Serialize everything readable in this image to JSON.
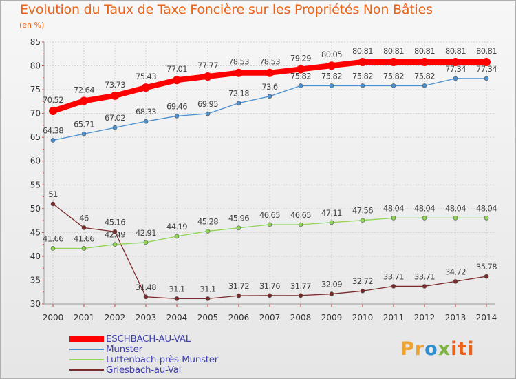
{
  "chart_data": {
    "type": "line",
    "title": "Evolution du Taux de Taxe Foncière sur les Propriétés Non Bâties",
    "subtitle": "(en %)",
    "xlabel": "",
    "ylabel": "(en %)",
    "ylim": [
      30,
      85
    ],
    "yticks": [
      30,
      35,
      40,
      45,
      50,
      55,
      60,
      65,
      70,
      75,
      80,
      85
    ],
    "x": [
      "2000",
      "2001",
      "2002",
      "2003",
      "2004",
      "2005",
      "2006",
      "2007",
      "2008",
      "2009",
      "2010",
      "2011",
      "2012",
      "2013",
      "2014"
    ],
    "grid": true,
    "legend_position": "bottom-left",
    "series": [
      {
        "name": "ESCHBACH-AU-VAL",
        "color": "#ff0000",
        "values": [
          70.52,
          72.64,
          73.73,
          75.43,
          77.01,
          77.77,
          78.53,
          78.53,
          79.29,
          80.05,
          80.81,
          80.81,
          80.81,
          80.81,
          80.81
        ],
        "labels": [
          "70.52",
          "72.64",
          "73.73",
          "75.43",
          "77.01",
          "77.77",
          "78.53",
          "78.53",
          "79.29",
          "80.05",
          "80.81",
          "80.81",
          "80.81",
          "80.81",
          "80.81"
        ]
      },
      {
        "name": "Munster",
        "color": "#4a90d0",
        "values": [
          64.38,
          65.71,
          67.02,
          68.33,
          69.46,
          69.95,
          72.18,
          73.6,
          75.82,
          75.82,
          75.82,
          75.82,
          75.82,
          77.34,
          77.34
        ],
        "labels": [
          "64.38",
          "65.71",
          "67.02",
          "68.33",
          "69.46",
          "69.95",
          "72.18",
          "73.6",
          "75.82",
          "75.82",
          "75.82",
          "75.82",
          "75.82",
          "77.34",
          "77.34"
        ]
      },
      {
        "name": "Luttenbach-près-Munster",
        "color": "#8ed653",
        "values": [
          41.66,
          41.66,
          42.49,
          42.91,
          44.19,
          45.28,
          45.96,
          46.65,
          46.65,
          47.11,
          47.56,
          48.04,
          48.04,
          48.04,
          48.04
        ],
        "labels": [
          "41.66",
          "41.66",
          "42.49",
          "42.91",
          "44.19",
          "45.28",
          "45.96",
          "46.65",
          "46.65",
          "47.11",
          "47.56",
          "48.04",
          "48.04",
          "48.04",
          "48.04"
        ]
      },
      {
        "name": "Griesbach-au-Val",
        "color": "#7a2a2a",
        "values": [
          51,
          46,
          45.16,
          31.48,
          31.1,
          31.1,
          31.72,
          31.76,
          31.77,
          32.09,
          32.72,
          33.71,
          33.71,
          34.72,
          35.78
        ],
        "labels": [
          "51",
          "46",
          "45.16",
          "31.48",
          "31.1",
          "31.1",
          "31.72",
          "31.76",
          "31.77",
          "32.09",
          "32.72",
          "33.71",
          "33.71",
          "34.72",
          "35.78"
        ]
      }
    ]
  },
  "logo": {
    "text_parts": [
      "Pr",
      "o",
      "x",
      "iti"
    ],
    "text": "Proxiti"
  }
}
